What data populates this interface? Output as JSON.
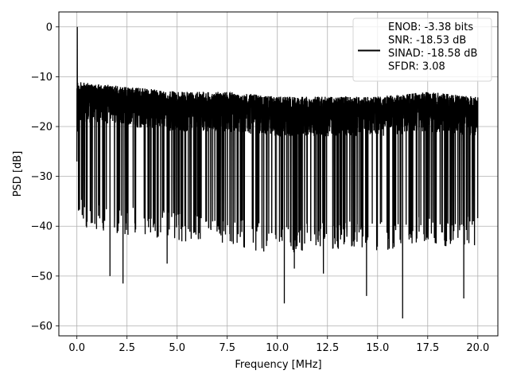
{
  "chart_data": {
    "type": "line",
    "title": "",
    "xlabel": "Frequency [MHz]",
    "ylabel": "PSD [dB]",
    "xlim": [
      -0.9,
      21.0
    ],
    "ylim": [
      -62,
      3
    ],
    "xticks": [
      0.0,
      2.5,
      5.0,
      7.5,
      10.0,
      12.5,
      15.0,
      17.5,
      20.0
    ],
    "xtick_labels": [
      "0.0",
      "2.5",
      "5.0",
      "7.5",
      "10.0",
      "12.5",
      "15.0",
      "17.5",
      "20.0"
    ],
    "yticks": [
      0,
      -10,
      -20,
      -30,
      -40,
      -50,
      -60
    ],
    "ytick_labels": [
      "0",
      "−10",
      "−20",
      "−30",
      "−40",
      "−50",
      "−60"
    ],
    "grid": true,
    "legend_position": "top-right",
    "legend_lines": [
      "ENOB: -3.38 bits",
      "SNR: -18.53 dB",
      "SINAD: -18.58 dB",
      "SFDR: 3.08"
    ],
    "series": [
      {
        "color": "#000000",
        "x_range": [
          0.0,
          20.0
        ],
        "points": 4000,
        "peak": {
          "x": 0.02,
          "y": 0.0
        },
        "noise_envelope": {
          "x": [
            0.0,
            2.5,
            5.0,
            7.5,
            10.0,
            12.5,
            15.0,
            17.5,
            20.0
          ],
          "upper": [
            -11,
            -12,
            -13,
            -13,
            -14,
            -14,
            -14,
            -13,
            -14
          ],
          "lower_typical": [
            -34,
            -36,
            -37,
            -38,
            -40,
            -39,
            -39,
            -38,
            -38
          ]
        },
        "notable_minima": [
          {
            "x": 1.65,
            "y": -50.0
          },
          {
            "x": 2.3,
            "y": -51.5
          },
          {
            "x": 4.5,
            "y": -47.5
          },
          {
            "x": 10.35,
            "y": -55.5
          },
          {
            "x": 10.85,
            "y": -48.5
          },
          {
            "x": 12.3,
            "y": -49.5
          },
          {
            "x": 14.45,
            "y": -54.0
          },
          {
            "x": 16.25,
            "y": -58.5
          },
          {
            "x": 19.3,
            "y": -54.5
          }
        ]
      }
    ]
  }
}
